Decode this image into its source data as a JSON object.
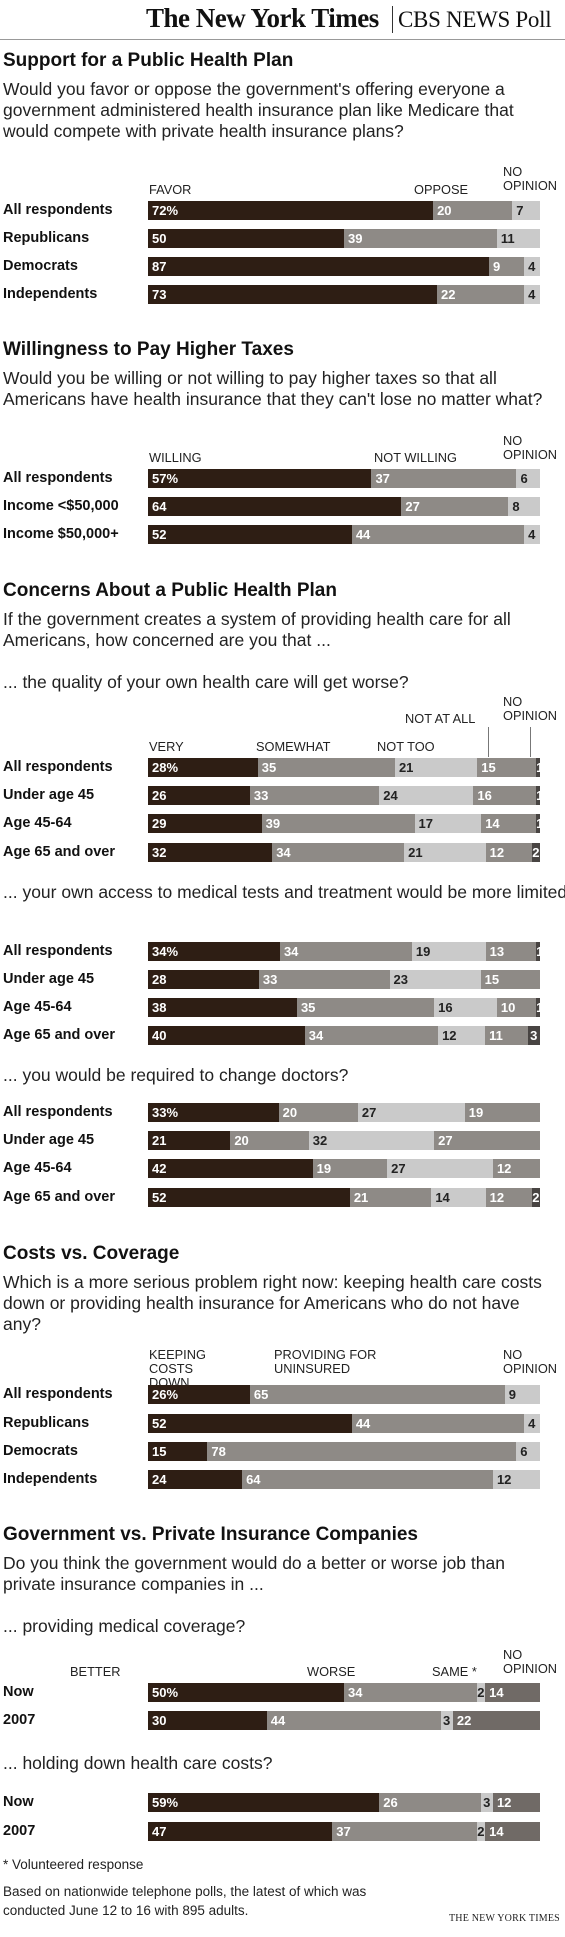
{
  "header": {
    "nyt": "The New York Times",
    "cbs": "CBS NEWS Poll"
  },
  "chart_data": [
    {
      "type": "bar",
      "title": "Support for a Public Health Plan",
      "questions": [
        "Would you favor or oppose the government's offering everyone a government administered health insurance plan like Medicare that would compete with private health insurance plans?"
      ],
      "column_labels": [
        "FAVOR",
        "OPPOSE",
        "NO OPINION"
      ],
      "categories": [
        "All respondents",
        "Republicans",
        "Democrats",
        "Independents"
      ],
      "labels": [
        [
          "72%",
          "20",
          "7"
        ],
        [
          "50",
          "39",
          "11"
        ],
        [
          "87",
          "9",
          "4"
        ],
        [
          "73",
          "22",
          "4"
        ]
      ],
      "series": [
        {
          "name": "FAVOR",
          "values": [
            72,
            50,
            87,
            73
          ]
        },
        {
          "name": "OPPOSE",
          "values": [
            20,
            39,
            9,
            22
          ]
        },
        {
          "name": "NO OPINION",
          "values": [
            7,
            11,
            4,
            4
          ]
        }
      ]
    },
    {
      "type": "bar",
      "title": "Willingness to Pay Higher Taxes",
      "questions": [
        "Would you be willing or not willing to pay higher taxes so that all Americans have health insurance that they can't lose no matter what?"
      ],
      "column_labels": [
        "WILLING",
        "NOT WILLING",
        "NO OPINION"
      ],
      "categories": [
        "All respondents",
        "Income <$50,000",
        "Income $50,000+"
      ],
      "labels": [
        [
          "57%",
          "37",
          "6"
        ],
        [
          "64",
          "27",
          "8"
        ],
        [
          "52",
          "44",
          "4"
        ]
      ],
      "series": [
        {
          "name": "WILLING",
          "values": [
            57,
            64,
            52
          ]
        },
        {
          "name": "NOT WILLING",
          "values": [
            37,
            27,
            44
          ]
        },
        {
          "name": "NO OPINION",
          "values": [
            6,
            8,
            4
          ]
        }
      ]
    },
    {
      "type": "bar",
      "title": "Concerns About a Public Health Plan",
      "questions": [
        "If the government creates a system of providing health care for all Americans, how concerned are you that ..."
      ],
      "subquestion": "... the quality of your own health care will get worse?",
      "column_labels": [
        "VERY",
        "SOMEWHAT",
        "NOT TOO",
        "NOT AT ALL",
        "NO OPINION"
      ],
      "categories": [
        "All respondents",
        "Under age 45",
        "Age 45-64",
        "Age 65 and over"
      ],
      "labels": [
        [
          "28%",
          "35",
          "21",
          "15",
          "1"
        ],
        [
          "26",
          "33",
          "24",
          "16",
          "1"
        ],
        [
          "29",
          "39",
          "17",
          "14",
          "1"
        ],
        [
          "32",
          "34",
          "21",
          "12",
          "2"
        ]
      ],
      "series": [
        {
          "name": "VERY",
          "values": [
            28,
            26,
            29,
            32
          ]
        },
        {
          "name": "SOMEWHAT",
          "values": [
            35,
            33,
            39,
            34
          ]
        },
        {
          "name": "NOT TOO",
          "values": [
            21,
            24,
            17,
            21
          ]
        },
        {
          "name": "NOT AT ALL",
          "values": [
            15,
            16,
            14,
            12
          ]
        },
        {
          "name": "NO OPINION",
          "values": [
            1,
            1,
            1,
            2
          ]
        }
      ]
    },
    {
      "type": "bar",
      "subquestion": "... your own access to medical tests and treatment would be more limited than it is now?",
      "categories": [
        "All respondents",
        "Under age 45",
        "Age 45-64",
        "Age 65 and over"
      ],
      "labels": [
        [
          "34%",
          "34",
          "19",
          "13",
          "1"
        ],
        [
          "28",
          "33",
          "23",
          "15",
          ""
        ],
        [
          "38",
          "35",
          "16",
          "10",
          "1"
        ],
        [
          "40",
          "34",
          "12",
          "11",
          "3"
        ]
      ],
      "series": [
        {
          "name": "VERY",
          "values": [
            34,
            28,
            38,
            40
          ]
        },
        {
          "name": "SOMEWHAT",
          "values": [
            34,
            33,
            35,
            34
          ]
        },
        {
          "name": "NOT TOO",
          "values": [
            19,
            23,
            16,
            12
          ]
        },
        {
          "name": "NOT AT ALL",
          "values": [
            13,
            15,
            10,
            11
          ]
        },
        {
          "name": "NO OPINION",
          "values": [
            1,
            0,
            1,
            3
          ]
        }
      ]
    },
    {
      "type": "bar",
      "subquestion": "... you would be required to change doctors?",
      "categories": [
        "All respondents",
        "Under age 45",
        "Age 45-64",
        "Age 65 and over"
      ],
      "labels": [
        [
          "33%",
          "20",
          "27",
          "19",
          ""
        ],
        [
          "21",
          "20",
          "32",
          "27",
          ""
        ],
        [
          "42",
          "19",
          "27",
          "12",
          ""
        ],
        [
          "52",
          "21",
          "14",
          "12",
          "2"
        ]
      ],
      "series": [
        {
          "name": "VERY",
          "values": [
            33,
            21,
            42,
            52
          ]
        },
        {
          "name": "SOMEWHAT",
          "values": [
            20,
            20,
            19,
            21
          ]
        },
        {
          "name": "NOT TOO",
          "values": [
            27,
            32,
            27,
            14
          ]
        },
        {
          "name": "NOT AT ALL",
          "values": [
            19,
            27,
            12,
            12
          ]
        },
        {
          "name": "NO OPINION",
          "values": [
            0,
            0,
            0,
            2
          ]
        }
      ]
    },
    {
      "type": "bar",
      "title": "Costs vs. Coverage",
      "questions": [
        "Which is a more serious problem right now: keeping health care costs down or providing health insurance for Americans who do not have any?"
      ],
      "column_labels": [
        "KEEPING COSTS DOWN",
        "PROVIDING FOR UNINSURED",
        "NO OPINION"
      ],
      "categories": [
        "All respondents",
        "Republicans",
        "Democrats",
        "Independents"
      ],
      "labels": [
        [
          "26%",
          "65",
          "9"
        ],
        [
          "52",
          "44",
          "4"
        ],
        [
          "15",
          "78",
          "6"
        ],
        [
          "24",
          "64",
          "12"
        ]
      ],
      "series": [
        {
          "name": "KEEPING COSTS DOWN",
          "values": [
            26,
            52,
            15,
            24
          ]
        },
        {
          "name": "PROVIDING FOR UNINSURED",
          "values": [
            65,
            44,
            78,
            64
          ]
        },
        {
          "name": "NO OPINION",
          "values": [
            9,
            4,
            6,
            12
          ]
        }
      ]
    },
    {
      "type": "bar",
      "title": "Government vs. Private Insurance Companies",
      "questions": [
        "Do you think the government would do a better or worse job than private insurance companies in ..."
      ],
      "subquestion": "... providing medical coverage?",
      "column_labels": [
        "BETTER",
        "WORSE",
        "SAME *",
        "NO OPINION"
      ],
      "categories": [
        "Now",
        "2007"
      ],
      "labels": [
        [
          "50%",
          "34",
          "2",
          "14"
        ],
        [
          "30",
          "44",
          "3",
          "22"
        ]
      ],
      "series": [
        {
          "name": "BETTER",
          "values": [
            50,
            30
          ]
        },
        {
          "name": "WORSE",
          "values": [
            34,
            44
          ]
        },
        {
          "name": "SAME *",
          "values": [
            2,
            3
          ]
        },
        {
          "name": "NO OPINION",
          "values": [
            14,
            22
          ]
        }
      ]
    },
    {
      "type": "bar",
      "subquestion": "... holding down health care costs?",
      "categories": [
        "Now",
        "2007"
      ],
      "labels": [
        [
          "59%",
          "26",
          "3",
          "12"
        ],
        [
          "47",
          "37",
          "2",
          "14"
        ]
      ],
      "series": [
        {
          "name": "BETTER",
          "values": [
            59,
            47
          ]
        },
        {
          "name": "WORSE",
          "values": [
            26,
            37
          ]
        },
        {
          "name": "SAME *",
          "values": [
            3,
            2
          ]
        },
        {
          "name": "NO OPINION",
          "values": [
            12,
            14
          ]
        }
      ]
    }
  ],
  "footnotes": {
    "volunteered": "* Volunteered response",
    "source": "Based on nationwide telephone polls, the latest of which was conducted June 12 to 16 with 895 adults.",
    "credit": "THE NEW YORK TIMES"
  }
}
